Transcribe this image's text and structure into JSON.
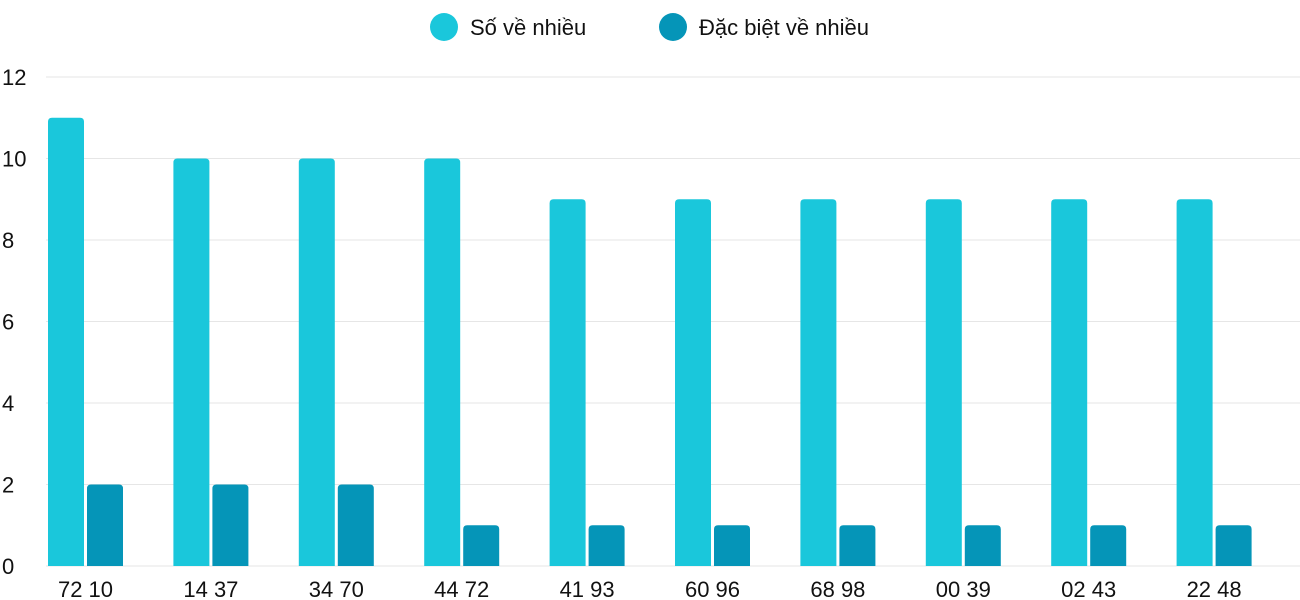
{
  "chart_data": {
    "type": "bar",
    "categories": [
      "72 10",
      "14 37",
      "34 70",
      "44 72",
      "41 93",
      "60 96",
      "68 98",
      "00 39",
      "02 43",
      "22 48"
    ],
    "series": [
      {
        "name": "Số về nhiều",
        "color": "#1ac7db",
        "values": [
          11,
          10,
          10,
          10,
          9,
          9,
          9,
          9,
          9,
          9
        ]
      },
      {
        "name": "Đặc biệt về nhiều",
        "color": "#0595b8",
        "values": [
          2,
          2,
          2,
          1,
          1,
          1,
          1,
          1,
          1,
          1
        ]
      }
    ],
    "ylim": [
      0,
      12
    ],
    "yticks": [
      0,
      2,
      4,
      6,
      8,
      10,
      12
    ],
    "grid": true,
    "legend": "top-center"
  }
}
